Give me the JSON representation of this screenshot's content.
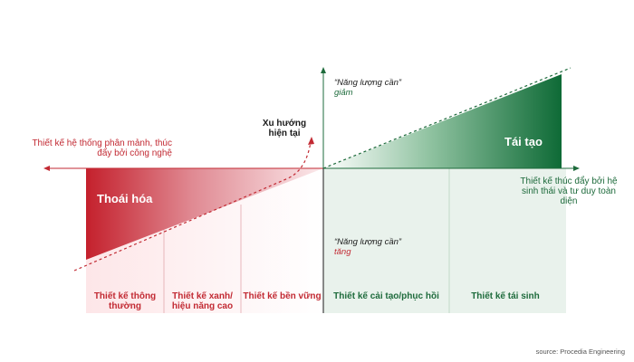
{
  "diagram": {
    "left_label": "Thiết kế hệ thống phân mảnh, thúc đẩy bởi công nghệ",
    "current_trend": "Xu hướng hiện tại",
    "energy_top_title": "“Năng lượng cần”",
    "energy_top_sub": "giảm",
    "energy_bottom_title": "“Năng lượng cần”",
    "energy_bottom_sub": "tăng",
    "degenerative": "Thoái hóa",
    "regenerative_triangle": "Tái tạo",
    "right_label": "Thiết kế thúc đẩy bởi hệ sinh thái và tư duy toàn diện",
    "stages": [
      "Thiết kế thông thường",
      "Thiết kế xanh/ hiệu năng cao",
      "Thiết kế bền vững",
      "Thiết kế cải tạo/phục hồi",
      "Thiết kế tái sinh"
    ],
    "source": "source: Procedia Engineering"
  },
  "colors": {
    "red": "#c22a33",
    "green": "#1e6b3c",
    "red_tint": "#fbeaec",
    "green_tint": "#e9f2ec"
  }
}
